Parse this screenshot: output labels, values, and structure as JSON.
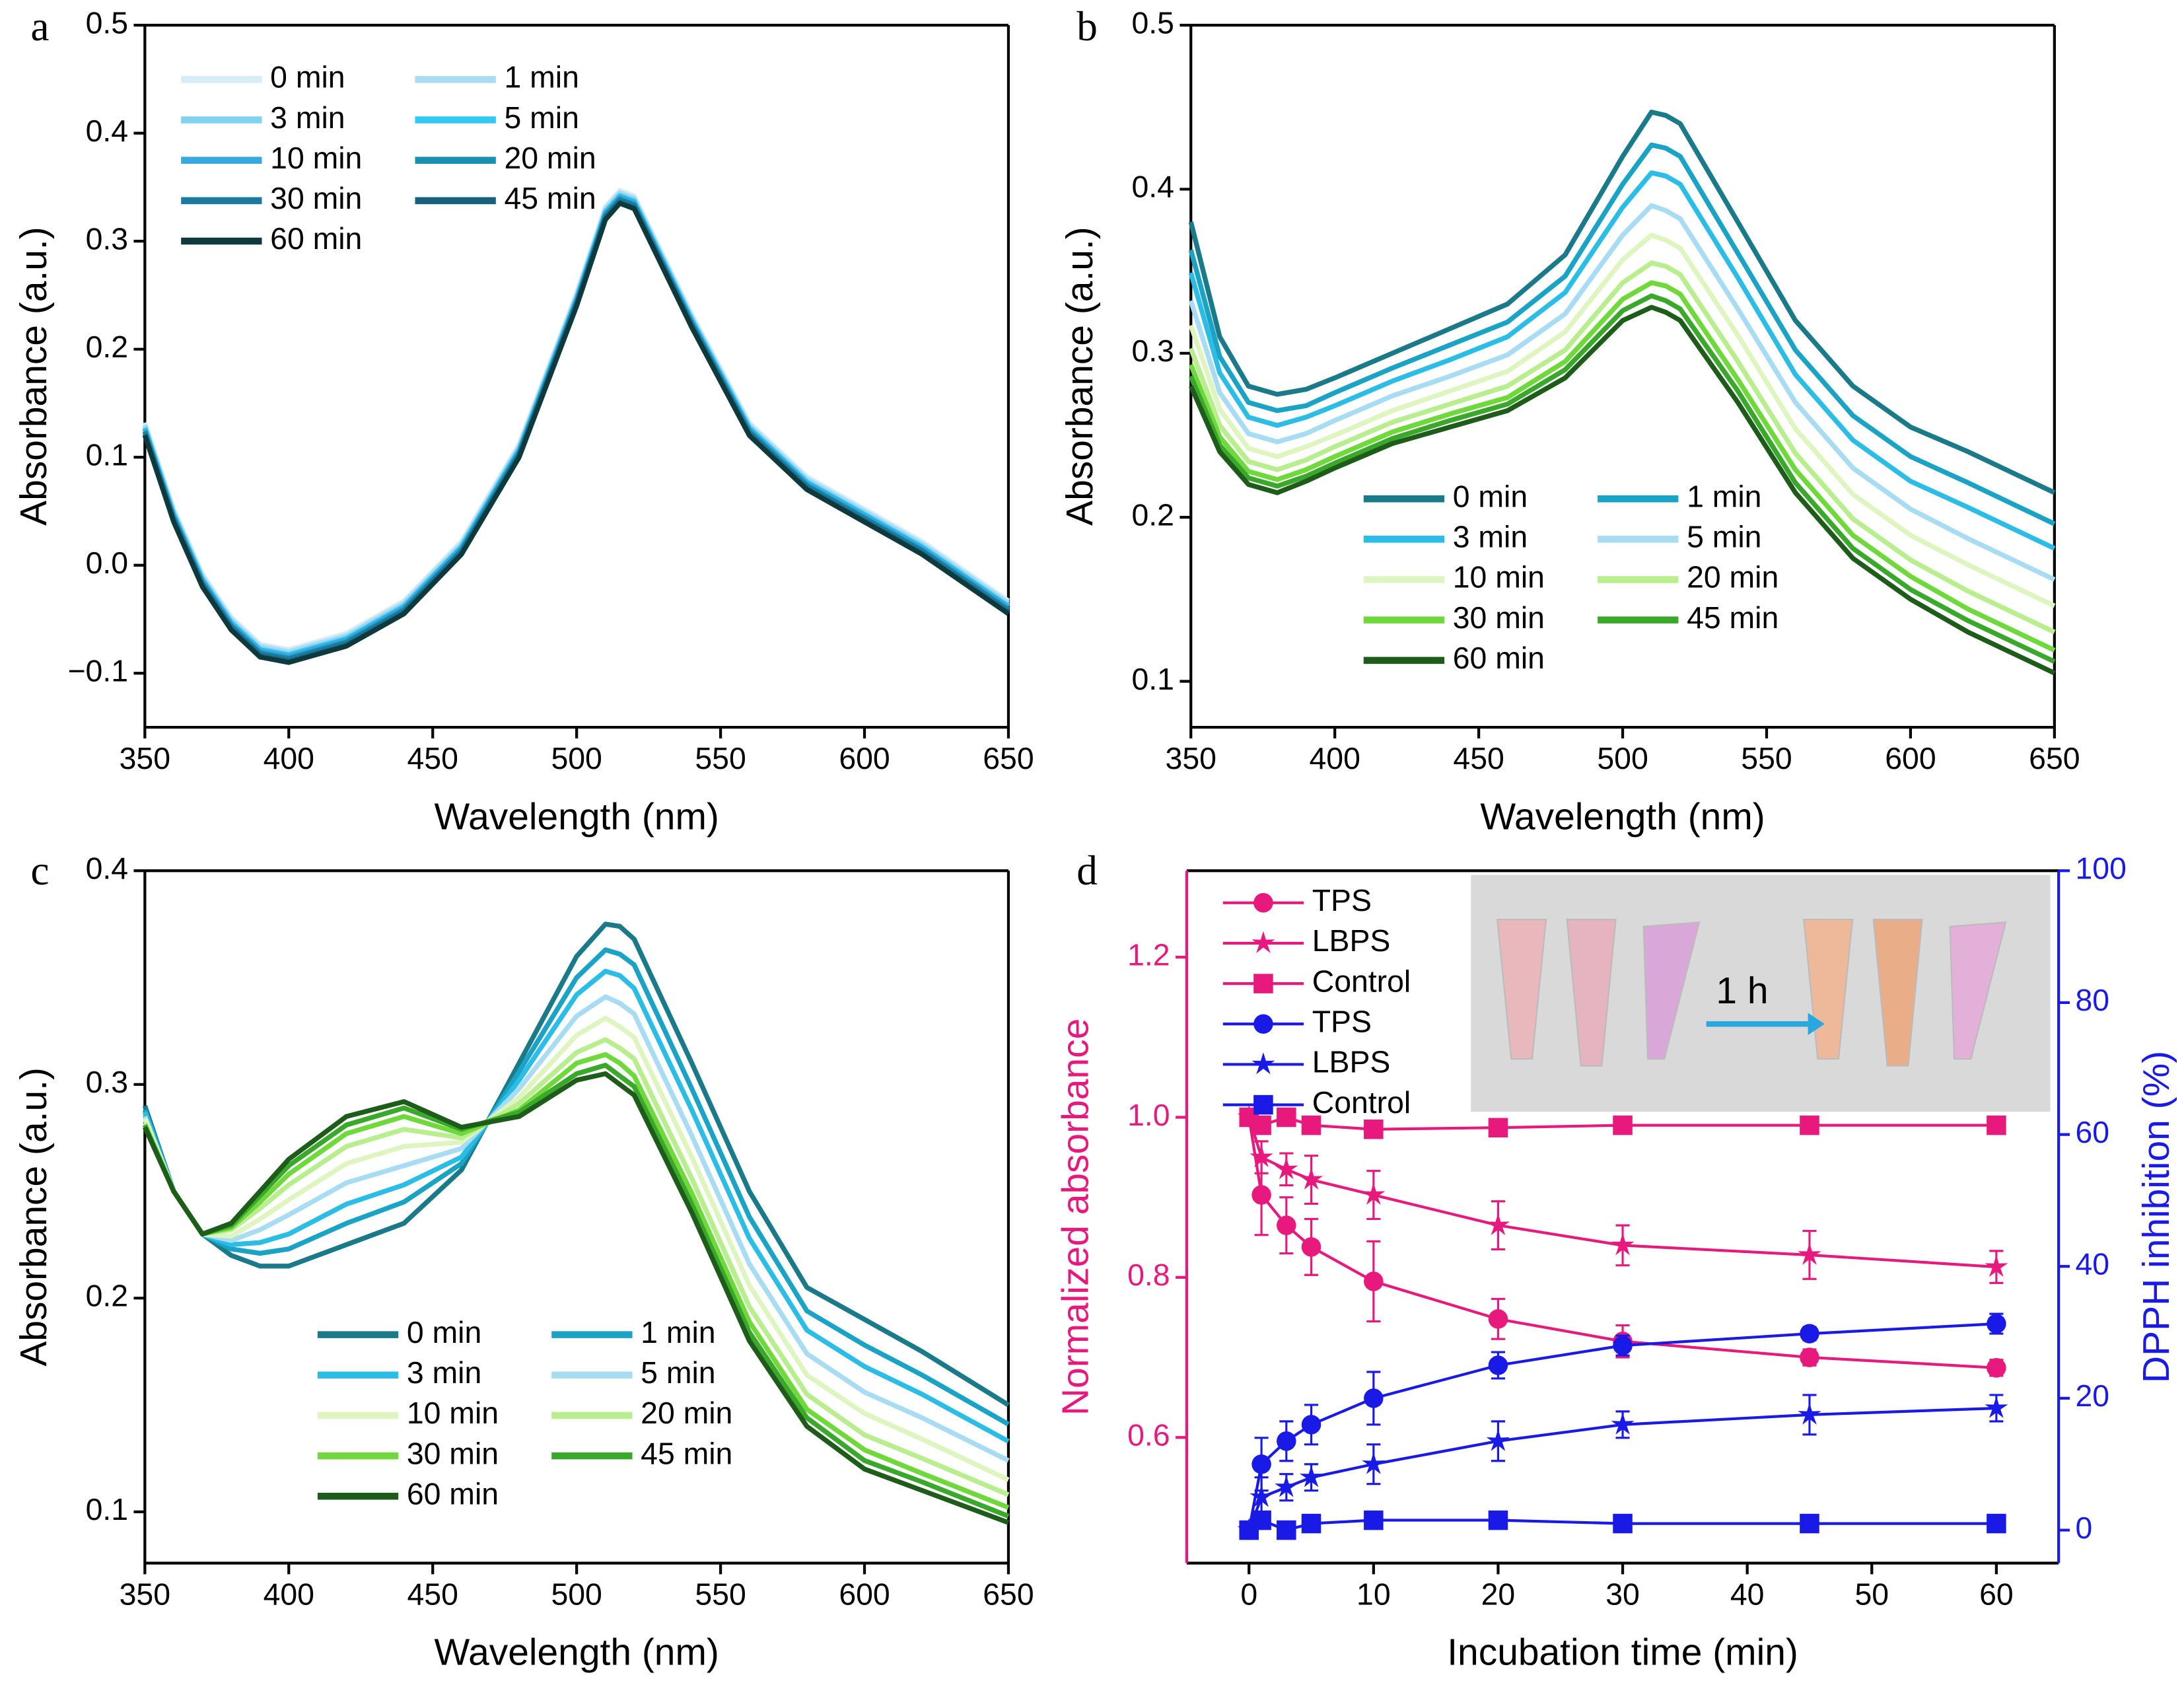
{
  "chart_data": [
    {
      "type": "line",
      "panel": "a",
      "xlabel": "Wavelength (nm)",
      "ylabel": "Absorbance (a.u.)",
      "x": [
        350,
        360,
        370,
        380,
        390,
        400,
        420,
        440,
        460,
        480,
        500,
        510,
        515,
        520,
        540,
        560,
        580,
        600,
        620,
        650
      ],
      "xlim": [
        350,
        650
      ],
      "xticks": [
        350,
        400,
        450,
        500,
        550,
        600,
        650
      ],
      "ylim": [
        -0.15,
        0.5
      ],
      "yticks": [
        {
          "value": -0.1,
          "label": "−0.1"
        },
        {
          "value": 0,
          "label": "0.0"
        },
        0.1,
        0.2,
        0.3,
        0.4,
        0.5
      ],
      "legend": "upper left",
      "legend_columns": 2,
      "series": [
        {
          "name": "0 min",
          "color": "#d6ecf7",
          "values": [
            0.132,
            0.052,
            -0.008,
            -0.048,
            -0.073,
            -0.078,
            -0.063,
            -0.033,
            0.022,
            0.112,
            0.252,
            0.332,
            0.347,
            0.342,
            0.232,
            0.132,
            0.082,
            0.052,
            0.022,
            -0.033
          ]
        },
        {
          "name": "1 min",
          "color": "#a9dcf2",
          "values": [
            0.13,
            0.05,
            -0.01,
            -0.05,
            -0.075,
            -0.08,
            -0.065,
            -0.035,
            0.02,
            0.11,
            0.25,
            0.33,
            0.345,
            0.34,
            0.23,
            0.13,
            0.08,
            0.05,
            0.02,
            -0.035
          ]
        },
        {
          "name": "3 min",
          "color": "#7fd3f0",
          "values": [
            0.128,
            0.048,
            -0.012,
            -0.052,
            -0.077,
            -0.082,
            -0.067,
            -0.037,
            0.018,
            0.108,
            0.248,
            0.328,
            0.343,
            0.338,
            0.228,
            0.128,
            0.078,
            0.048,
            0.018,
            -0.037
          ]
        },
        {
          "name": "5 min",
          "color": "#30c9f0",
          "values": [
            0.127,
            0.047,
            -0.013,
            -0.053,
            -0.078,
            -0.083,
            -0.068,
            -0.038,
            0.017,
            0.107,
            0.247,
            0.327,
            0.342,
            0.337,
            0.227,
            0.127,
            0.077,
            0.047,
            0.017,
            -0.038
          ]
        },
        {
          "name": "10 min",
          "color": "#3aa8e0",
          "values": [
            0.126,
            0.046,
            -0.014,
            -0.054,
            -0.079,
            -0.084,
            -0.069,
            -0.039,
            0.016,
            0.106,
            0.246,
            0.326,
            0.341,
            0.336,
            0.226,
            0.126,
            0.076,
            0.046,
            0.016,
            -0.039
          ]
        },
        {
          "name": "20 min",
          "color": "#1a8fb0",
          "values": [
            0.124,
            0.044,
            -0.016,
            -0.056,
            -0.081,
            -0.086,
            -0.071,
            -0.041,
            0.014,
            0.104,
            0.244,
            0.324,
            0.339,
            0.334,
            0.224,
            0.124,
            0.074,
            0.044,
            0.014,
            -0.041
          ]
        },
        {
          "name": "30 min",
          "color": "#1a7aa0",
          "values": [
            0.123,
            0.043,
            -0.017,
            -0.057,
            -0.082,
            -0.087,
            -0.072,
            -0.042,
            0.013,
            0.103,
            0.243,
            0.323,
            0.338,
            0.333,
            0.223,
            0.123,
            0.073,
            0.043,
            0.013,
            -0.042
          ]
        },
        {
          "name": "45 min",
          "color": "#16627a",
          "values": [
            0.121,
            0.041,
            -0.019,
            -0.059,
            -0.084,
            -0.089,
            -0.074,
            -0.044,
            0.011,
            0.101,
            0.241,
            0.321,
            0.336,
            0.331,
            0.221,
            0.121,
            0.071,
            0.041,
            0.011,
            -0.044
          ]
        },
        {
          "name": "60 min",
          "color": "#0e3a3e",
          "values": [
            0.12,
            0.04,
            -0.02,
            -0.06,
            -0.085,
            -0.09,
            -0.075,
            -0.045,
            0.01,
            0.1,
            0.24,
            0.32,
            0.335,
            0.33,
            0.22,
            0.12,
            0.07,
            0.04,
            0.01,
            -0.045
          ]
        }
      ]
    },
    {
      "type": "line",
      "panel": "b",
      "xlabel": "Wavelength (nm)",
      "ylabel": "Absorbance (a.u.)",
      "x": [
        350,
        360,
        370,
        380,
        390,
        400,
        420,
        440,
        460,
        480,
        500,
        510,
        515,
        520,
        540,
        560,
        580,
        600,
        620,
        650
      ],
      "xlim": [
        350,
        650
      ],
      "xticks": [
        350,
        400,
        450,
        500,
        550,
        600,
        650
      ],
      "ylim": [
        0.072,
        0.5
      ],
      "yticks": [
        0.1,
        0.2,
        0.3,
        0.4,
        0.5
      ],
      "legend": "lower center",
      "legend_columns": 2,
      "series": [
        {
          "name": "0 min",
          "color": "#1a7a8a",
          "values": [
            0.38,
            0.31,
            0.28,
            0.275,
            0.278,
            0.285,
            0.3,
            0.315,
            0.33,
            0.36,
            0.42,
            0.447,
            0.445,
            0.44,
            0.38,
            0.32,
            0.28,
            0.255,
            0.24,
            0.215
          ]
        },
        {
          "name": "1 min",
          "color": "#1ba3c6",
          "values": [
            0.363,
            0.298,
            0.27,
            0.265,
            0.268,
            0.276,
            0.291,
            0.305,
            0.319,
            0.347,
            0.403,
            0.427,
            0.425,
            0.42,
            0.361,
            0.302,
            0.262,
            0.237,
            0.221,
            0.196
          ]
        },
        {
          "name": "3 min",
          "color": "#2cbde6",
          "values": [
            0.349,
            0.288,
            0.261,
            0.256,
            0.261,
            0.268,
            0.283,
            0.296,
            0.31,
            0.337,
            0.389,
            0.41,
            0.408,
            0.403,
            0.346,
            0.287,
            0.247,
            0.222,
            0.206,
            0.181
          ]
        },
        {
          "name": "5 min",
          "color": "#a8dcf2",
          "values": [
            0.332,
            0.276,
            0.251,
            0.246,
            0.251,
            0.259,
            0.274,
            0.286,
            0.299,
            0.324,
            0.372,
            0.39,
            0.387,
            0.382,
            0.327,
            0.27,
            0.23,
            0.205,
            0.187,
            0.162
          ]
        },
        {
          "name": "10 min",
          "color": "#dff5c0",
          "values": [
            0.317,
            0.266,
            0.242,
            0.237,
            0.243,
            0.25,
            0.265,
            0.277,
            0.289,
            0.313,
            0.357,
            0.372,
            0.369,
            0.364,
            0.311,
            0.254,
            0.214,
            0.189,
            0.171,
            0.146
          ]
        },
        {
          "name": "20 min",
          "color": "#b9ee8f",
          "values": [
            0.303,
            0.256,
            0.234,
            0.229,
            0.235,
            0.243,
            0.258,
            0.269,
            0.28,
            0.302,
            0.343,
            0.355,
            0.353,
            0.348,
            0.295,
            0.239,
            0.199,
            0.174,
            0.155,
            0.13
          ]
        },
        {
          "name": "30 min",
          "color": "#6fd83a",
          "values": [
            0.293,
            0.249,
            0.228,
            0.223,
            0.229,
            0.237,
            0.252,
            0.263,
            0.273,
            0.295,
            0.333,
            0.343,
            0.341,
            0.336,
            0.284,
            0.229,
            0.189,
            0.164,
            0.144,
            0.119
          ]
        },
        {
          "name": "45 min",
          "color": "#3aa82a",
          "values": [
            0.286,
            0.244,
            0.224,
            0.219,
            0.225,
            0.233,
            0.248,
            0.259,
            0.269,
            0.29,
            0.326,
            0.335,
            0.332,
            0.327,
            0.277,
            0.221,
            0.181,
            0.156,
            0.137,
            0.112
          ]
        },
        {
          "name": "60 min",
          "color": "#1e5c1a",
          "values": [
            0.28,
            0.24,
            0.22,
            0.215,
            0.222,
            0.23,
            0.245,
            0.255,
            0.265,
            0.285,
            0.32,
            0.328,
            0.325,
            0.32,
            0.27,
            0.215,
            0.175,
            0.15,
            0.13,
            0.105
          ]
        }
      ]
    },
    {
      "type": "line",
      "panel": "c",
      "xlabel": "Wavelength (nm)",
      "ylabel": "Absorbance (a.u.)",
      "x": [
        350,
        360,
        370,
        380,
        390,
        400,
        420,
        440,
        460,
        480,
        500,
        510,
        515,
        520,
        540,
        560,
        580,
        600,
        620,
        650
      ],
      "xlim": [
        350,
        650
      ],
      "xticks": [
        350,
        400,
        450,
        500,
        550,
        600,
        650
      ],
      "ylim": [
        0.076,
        0.4
      ],
      "yticks": [
        0.1,
        0.2,
        0.3,
        0.4
      ],
      "legend": "lower center",
      "legend_columns": 2,
      "series": [
        {
          "name": "0 min",
          "color": "#1a7a8a",
          "values": [
            0.29,
            0.25,
            0.23,
            0.22,
            0.215,
            0.215,
            0.225,
            0.235,
            0.26,
            0.31,
            0.36,
            0.375,
            0.374,
            0.368,
            0.31,
            0.25,
            0.205,
            0.19,
            0.175,
            0.15
          ]
        },
        {
          "name": "1 min",
          "color": "#1ba3c6",
          "values": [
            0.288,
            0.25,
            0.23,
            0.223,
            0.221,
            0.223,
            0.235,
            0.245,
            0.263,
            0.306,
            0.35,
            0.363,
            0.361,
            0.356,
            0.298,
            0.238,
            0.194,
            0.178,
            0.164,
            0.141
          ]
        },
        {
          "name": "3 min",
          "color": "#2cbde6",
          "values": [
            0.287,
            0.25,
            0.23,
            0.225,
            0.226,
            0.23,
            0.244,
            0.253,
            0.266,
            0.302,
            0.342,
            0.353,
            0.351,
            0.345,
            0.288,
            0.228,
            0.185,
            0.168,
            0.155,
            0.133
          ]
        },
        {
          "name": "5 min",
          "color": "#a8dcf2",
          "values": [
            0.285,
            0.25,
            0.23,
            0.227,
            0.232,
            0.239,
            0.254,
            0.262,
            0.27,
            0.298,
            0.332,
            0.341,
            0.338,
            0.333,
            0.276,
            0.216,
            0.174,
            0.156,
            0.144,
            0.124
          ]
        },
        {
          "name": "10 min",
          "color": "#dff5c0",
          "values": [
            0.284,
            0.25,
            0.23,
            0.229,
            0.237,
            0.246,
            0.263,
            0.271,
            0.273,
            0.294,
            0.323,
            0.331,
            0.327,
            0.322,
            0.266,
            0.206,
            0.164,
            0.146,
            0.134,
            0.115
          ]
        },
        {
          "name": "20 min",
          "color": "#b9ee8f",
          "values": [
            0.282,
            0.25,
            0.23,
            0.232,
            0.242,
            0.253,
            0.271,
            0.279,
            0.275,
            0.291,
            0.315,
            0.321,
            0.317,
            0.312,
            0.256,
            0.196,
            0.155,
            0.136,
            0.125,
            0.108
          ]
        },
        {
          "name": "30 min",
          "color": "#6fd83a",
          "values": [
            0.281,
            0.25,
            0.23,
            0.233,
            0.245,
            0.258,
            0.277,
            0.285,
            0.277,
            0.288,
            0.31,
            0.314,
            0.31,
            0.304,
            0.249,
            0.189,
            0.148,
            0.129,
            0.118,
            0.102
          ]
        },
        {
          "name": "45 min",
          "color": "#3aa82a",
          "values": [
            0.281,
            0.25,
            0.23,
            0.234,
            0.248,
            0.262,
            0.281,
            0.289,
            0.279,
            0.287,
            0.305,
            0.309,
            0.304,
            0.299,
            0.244,
            0.184,
            0.144,
            0.124,
            0.114,
            0.098
          ]
        },
        {
          "name": "60 min",
          "color": "#1e5c1a",
          "values": [
            0.28,
            0.25,
            0.23,
            0.235,
            0.25,
            0.265,
            0.285,
            0.292,
            0.28,
            0.285,
            0.302,
            0.305,
            0.3,
            0.295,
            0.24,
            0.18,
            0.14,
            0.12,
            0.11,
            0.095
          ]
        }
      ]
    },
    {
      "type": "line",
      "panel": "d",
      "xlabel": "Incubation time (min)",
      "ylabel": "Normalized absorbance",
      "y2label": "DPPH inhibition (%)",
      "ycolor": "#e8197c",
      "y2color": "#1a1ae6",
      "annotation": "1 h",
      "x": [
        0,
        1,
        3,
        5,
        10,
        20,
        30,
        45,
        60
      ],
      "xlim": [
        -5,
        65
      ],
      "xticks": [
        0,
        10,
        20,
        30,
        40,
        50,
        60
      ],
      "ylim": [
        0.443,
        1.308
      ],
      "yticks": [
        0.6,
        0.8,
        {
          "value": 1,
          "label": "1.0"
        },
        1.2
      ],
      "y2lim": [
        -5,
        100
      ],
      "y2ticks": [
        0,
        20,
        40,
        60,
        80,
        100
      ],
      "legend": "upper left",
      "legend_columns": 1,
      "series": [
        {
          "name": "TPS",
          "color": "#e8197c",
          "marker": "circle",
          "values": [
            1.0,
            0.903,
            0.865,
            0.838,
            0.795,
            0.748,
            0.72,
            0.7,
            0.687
          ],
          "errors": [
            0,
            0.05,
            0.035,
            0.035,
            0.05,
            0.025,
            0.02,
            0.01,
            0.01
          ]
        },
        {
          "name": "LBPS",
          "color": "#e8197c",
          "marker": "star",
          "values": [
            1.0,
            0.95,
            0.935,
            0.922,
            0.903,
            0.865,
            0.84,
            0.828,
            0.813
          ],
          "errors": [
            0,
            0.02,
            0.02,
            0.03,
            0.03,
            0.03,
            0.025,
            0.03,
            0.02
          ]
        },
        {
          "name": "Control",
          "color": "#e8197c",
          "marker": "square",
          "values": [
            1.0,
            0.99,
            1.0,
            0.99,
            0.985,
            0.987,
            0.99,
            0.99,
            0.99
          ]
        },
        {
          "name": "TPS",
          "color": "#1a1ae6",
          "marker": "circle",
          "axis": "y2",
          "values": [
            0,
            10,
            13.5,
            16,
            20,
            25,
            28,
            29.8,
            31.3
          ],
          "errors": [
            0,
            4,
            3,
            3,
            4,
            2,
            1.5,
            1,
            1.5
          ]
        },
        {
          "name": "LBPS",
          "color": "#1a1ae6",
          "marker": "star",
          "axis": "y2",
          "values": [
            0,
            5,
            6.5,
            8,
            10,
            13.5,
            16,
            17.5,
            18.5
          ],
          "errors": [
            0,
            3,
            2,
            2,
            3,
            3,
            2,
            3,
            2
          ]
        },
        {
          "name": "Control",
          "color": "#1a1ae6",
          "marker": "square",
          "axis": "y2",
          "values": [
            0,
            1.5,
            0,
            1,
            1.5,
            1.5,
            1,
            1,
            1
          ]
        }
      ]
    }
  ]
}
